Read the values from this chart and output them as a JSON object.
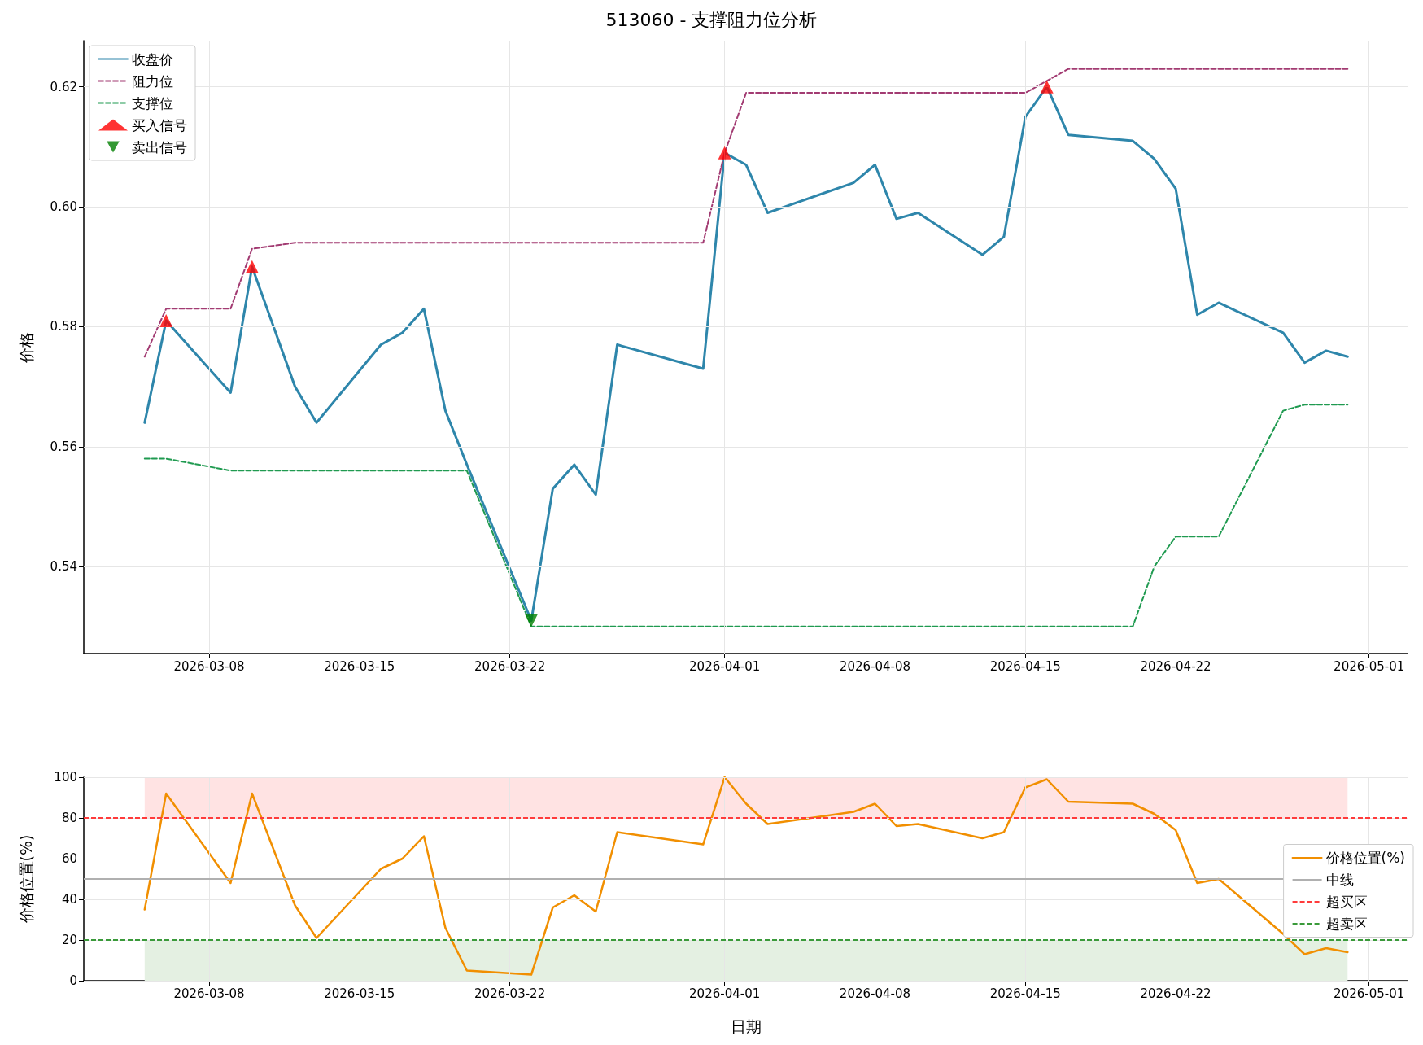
{
  "chart_data": [
    {
      "type": "line",
      "title": "513060 - 支撑阻力位分析",
      "ylabel": "价格",
      "grid": true,
      "legend": "top left",
      "x": [
        "2026-03-05",
        "2026-03-06",
        "2026-03-09",
        "2026-03-10",
        "2026-03-12",
        "2026-03-13",
        "2026-03-16",
        "2026-03-17",
        "2026-03-18",
        "2026-03-19",
        "2026-03-20",
        "2026-03-23",
        "2026-03-24",
        "2026-03-25",
        "2026-03-26",
        "2026-03-27",
        "2026-03-31",
        "2026-04-01",
        "2026-04-02",
        "2026-04-03",
        "2026-04-07",
        "2026-04-08",
        "2026-04-09",
        "2026-04-10",
        "2026-04-13",
        "2026-04-14",
        "2026-04-15",
        "2026-04-16",
        "2026-04-17",
        "2026-04-20",
        "2026-04-21",
        "2026-04-22",
        "2026-04-23",
        "2026-04-24",
        "2026-04-27",
        "2026-04-28",
        "2026-04-29",
        "2026-04-30"
      ],
      "xlim": [
        "2026-03-02T04:00",
        "2026-05-02T19:00"
      ],
      "xticks": [
        "2026-03-08",
        "2026-03-15",
        "2026-03-22",
        "2026-04-01",
        "2026-04-08",
        "2026-04-15",
        "2026-04-22",
        "2026-05-01"
      ],
      "ylim": [
        0.5255,
        0.6277
      ],
      "yticks": [
        {
          "value": 0.54,
          "label": "0.54"
        },
        {
          "value": 0.56,
          "label": "0.56"
        },
        {
          "value": 0.58,
          "label": "0.58"
        },
        {
          "value": 0.6,
          "label": "0.60"
        },
        {
          "value": 0.62,
          "label": "0.62"
        }
      ],
      "series": [
        {
          "name": "收盘价",
          "color": "#2e86ab",
          "marker": "none",
          "line_style": "solid",
          "values": [
            0.564,
            0.581,
            0.569,
            0.59,
            0.57,
            0.564,
            0.577,
            0.579,
            0.583,
            0.566,
            0.557,
            0.531,
            0.553,
            0.557,
            0.552,
            0.577,
            0.573,
            0.609,
            0.607,
            0.599,
            0.604,
            0.607,
            0.598,
            0.599,
            0.592,
            0.595,
            0.615,
            0.62,
            0.612,
            0.611,
            0.608,
            0.603,
            0.582,
            0.584,
            0.579,
            0.574,
            0.576,
            0.575
          ]
        },
        {
          "name": "阻力位",
          "color": "#a23b72",
          "marker": "none",
          "line_style": "dashed",
          "values": [
            0.575,
            0.583,
            0.583,
            0.593,
            0.594,
            0.594,
            0.594,
            0.594,
            0.594,
            0.594,
            0.594,
            0.594,
            0.594,
            0.594,
            0.594,
            0.594,
            0.594,
            0.609,
            0.619,
            0.619,
            0.619,
            0.619,
            0.619,
            0.619,
            0.619,
            0.619,
            0.619,
            0.621,
            0.623,
            0.623,
            0.623,
            0.623,
            0.623,
            0.623,
            0.623,
            0.623,
            0.623,
            0.623
          ]
        },
        {
          "name": "支撑位",
          "color": "#1f9a50",
          "marker": "none",
          "line_style": "dashed",
          "values": [
            0.558,
            0.558,
            0.556,
            0.556,
            0.556,
            0.556,
            0.556,
            0.556,
            0.556,
            0.556,
            0.556,
            0.53,
            0.53,
            0.53,
            0.53,
            0.53,
            0.53,
            0.53,
            0.53,
            0.53,
            0.53,
            0.53,
            0.53,
            0.53,
            0.53,
            0.53,
            0.53,
            0.53,
            0.53,
            0.53,
            0.54,
            0.545,
            0.545,
            0.545,
            0.566,
            0.567,
            0.567,
            0.567
          ]
        },
        {
          "name": "买入信号",
          "type": "scatter",
          "color": "#ff0000",
          "marker": "triangle",
          "x": [
            "2026-03-06",
            "2026-03-10",
            "2026-04-01",
            "2026-04-16"
          ],
          "values": [
            0.581,
            0.59,
            0.609,
            0.62
          ]
        },
        {
          "name": "卖出信号",
          "type": "scatter",
          "color": "#008000",
          "marker": "triangle_down",
          "x": [
            "2026-03-23"
          ],
          "values": [
            0.531
          ]
        }
      ]
    },
    {
      "type": "line",
      "xlabel": "日期",
      "ylabel": "价格位置(%)",
      "grid": true,
      "legend": "right",
      "x": [
        "2026-03-05",
        "2026-03-06",
        "2026-03-09",
        "2026-03-10",
        "2026-03-12",
        "2026-03-13",
        "2026-03-16",
        "2026-03-17",
        "2026-03-18",
        "2026-03-19",
        "2026-03-20",
        "2026-03-23",
        "2026-03-24",
        "2026-03-25",
        "2026-03-26",
        "2026-03-27",
        "2026-03-31",
        "2026-04-01",
        "2026-04-02",
        "2026-04-03",
        "2026-04-07",
        "2026-04-08",
        "2026-04-09",
        "2026-04-10",
        "2026-04-13",
        "2026-04-14",
        "2026-04-15",
        "2026-04-16",
        "2026-04-17",
        "2026-04-20",
        "2026-04-21",
        "2026-04-22",
        "2026-04-23",
        "2026-04-24",
        "2026-04-27",
        "2026-04-28",
        "2026-04-29",
        "2026-04-30"
      ],
      "xlim": [
        "2026-03-02T04:00",
        "2026-05-02T19:00"
      ],
      "xticks": [
        "2026-03-08",
        "2026-03-15",
        "2026-03-22",
        "2026-04-01",
        "2026-04-08",
        "2026-04-15",
        "2026-04-22",
        "2026-05-01"
      ],
      "ylim": [
        0,
        100
      ],
      "yticks": [
        0,
        20,
        40,
        60,
        80,
        100
      ],
      "series": [
        {
          "name": "价格位置(%)",
          "color": "#f18f01",
          "marker": "none",
          "line_style": "solid",
          "values": [
            35,
            92,
            48,
            92,
            37,
            21,
            55,
            60,
            71,
            26,
            5,
            3,
            36,
            42,
            34,
            73,
            67,
            100,
            87,
            77,
            83,
            87,
            76,
            77,
            70,
            73,
            95,
            99,
            88,
            87,
            82,
            74,
            48,
            50,
            23,
            13,
            16,
            14
          ]
        }
      ],
      "ref_lines": [
        {
          "axis": "y",
          "value": 50,
          "label": "中线",
          "color": "#b0b0b0",
          "line_style": "solid"
        },
        {
          "axis": "y",
          "value": 80,
          "label": "超买区",
          "color": "#ff3b3b",
          "line_style": "dashed"
        },
        {
          "axis": "y",
          "value": 20,
          "label": "超卖区",
          "color": "#3a9a3a",
          "line_style": "dashed"
        }
      ],
      "bands": [
        {
          "axis": "y",
          "from": 80,
          "to": 100,
          "color": "#ffe3e3"
        },
        {
          "axis": "y",
          "from": 0,
          "to": 20,
          "color": "#e4f0e2"
        }
      ]
    }
  ]
}
